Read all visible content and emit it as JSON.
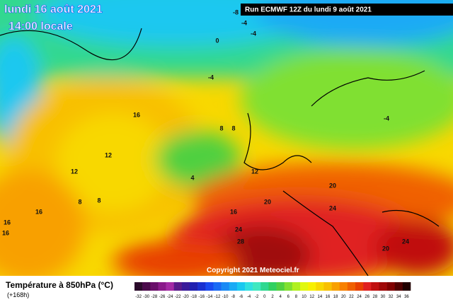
{
  "header": {
    "date": "lundi 16 août 2021",
    "time": "14:00 locale",
    "run": "Run ECMWF 12Z du lundi 9 août 2021"
  },
  "copyright": "Copyright 2021 Meteociel.fr",
  "legend": {
    "title": "Température à 850hPa (°C)",
    "lead": "(+168h)",
    "levels": [
      -32,
      -30,
      -28,
      -26,
      -24,
      -22,
      -20,
      -18,
      -16,
      -14,
      -12,
      -10,
      -8,
      -6,
      -4,
      -2,
      0,
      2,
      4,
      6,
      8,
      10,
      12,
      14,
      16,
      18,
      20,
      22,
      24,
      26,
      28,
      30,
      32,
      34,
      36
    ],
    "colors": [
      "#2a0a2a",
      "#4b0a4b",
      "#6a0f6a",
      "#8a1a8a",
      "#a52aa5",
      "#5a1a8a",
      "#3a1a9a",
      "#2020b0",
      "#1a30d0",
      "#1a4af0",
      "#1a6af5",
      "#1a8af5",
      "#1aaaf5",
      "#1ac8f0",
      "#30e0e0",
      "#40e8c0",
      "#30d890",
      "#30d060",
      "#50d040",
      "#80e030",
      "#b0f020",
      "#e0f810",
      "#f8f000",
      "#f8d800",
      "#f8c000",
      "#f8a000",
      "#f88000",
      "#f06000",
      "#e84000",
      "#e02020",
      "#c01010",
      "#a00808",
      "#800000",
      "#500000",
      "#200000"
    ]
  },
  "isotherm_labels": [
    -8,
    -4,
    -4,
    0,
    -4,
    -4,
    16,
    8,
    8,
    12,
    12,
    4,
    12,
    8,
    8,
    16,
    16,
    16,
    16,
    20,
    20,
    24,
    24,
    28,
    20,
    24
  ]
}
